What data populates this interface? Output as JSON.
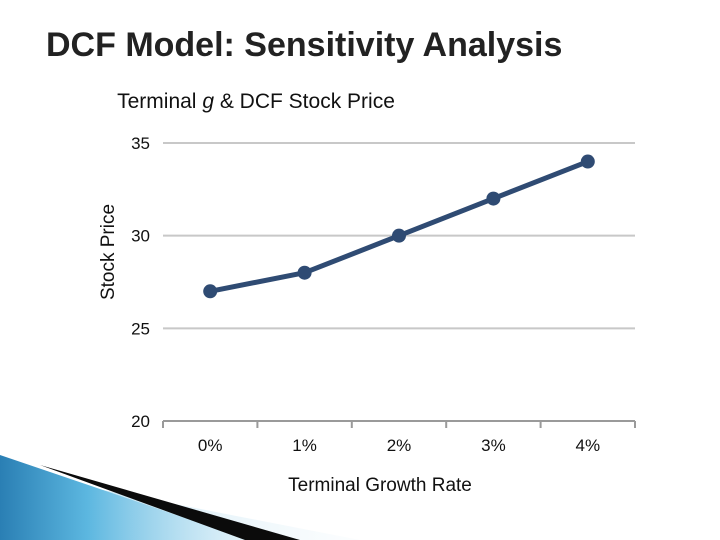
{
  "slide": {
    "title": "DCF Model: Sensitivity Analysis"
  },
  "chart_data": {
    "type": "line",
    "title_prefix": "Terminal ",
    "title_italic": "g",
    "title_suffix": " & DCF Stock Price",
    "xlabel": "Terminal Growth Rate",
    "ylabel": "Stock Price",
    "categories": [
      "0%",
      "1%",
      "2%",
      "3%",
      "4%"
    ],
    "series": [
      {
        "values": [
          27,
          28,
          30,
          32,
          34
        ]
      }
    ],
    "ylim": [
      20,
      35
    ],
    "yticks": [
      20,
      25,
      30,
      35
    ],
    "grid": true,
    "legend": "none",
    "colors": {
      "line": "#2f4b73",
      "grid": "#c8c8c8",
      "axis": "#9a9a9a"
    }
  }
}
